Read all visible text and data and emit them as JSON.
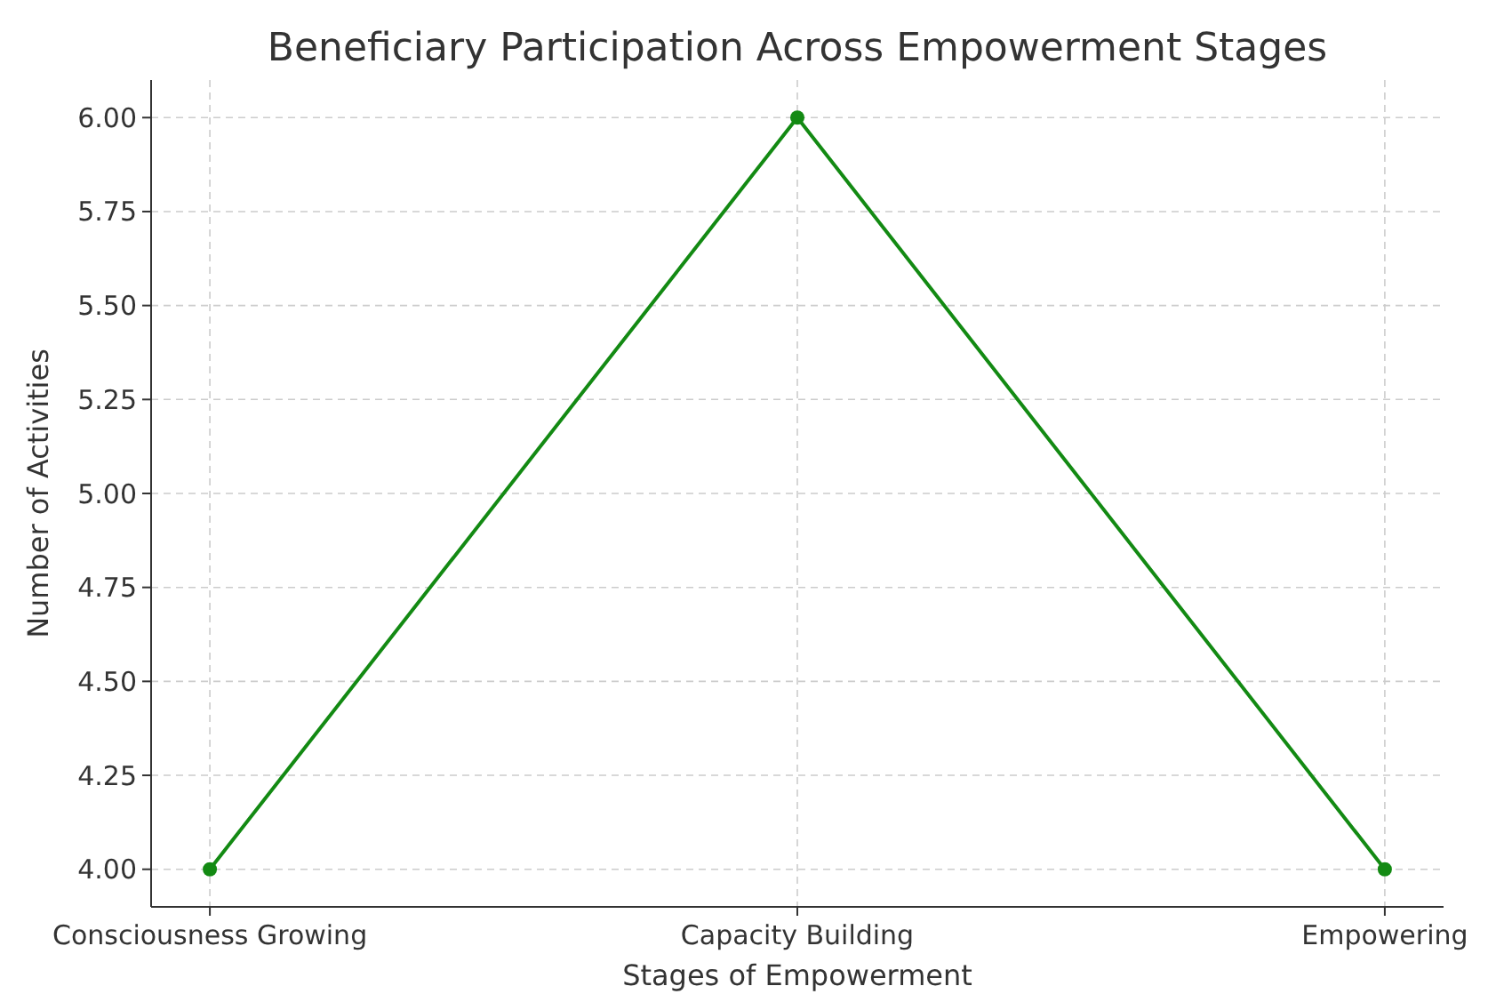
{
  "chart_data": {
    "type": "line",
    "title": "Beneficiary Participation Across Empowerment Stages",
    "xlabel": "Stages of Empowerment",
    "ylabel": "Number of Activities",
    "categories": [
      "Consciousness Growing",
      "Capacity Building",
      "Empowering"
    ],
    "series": [
      {
        "color": "#138a13",
        "values": [
          4,
          6,
          4
        ]
      }
    ],
    "ylim": [
      3.9,
      6.1
    ],
    "yticks": [
      {
        "value": 4,
        "label": "4.00"
      },
      {
        "value": 4.25,
        "label": "4.25"
      },
      {
        "value": 4.5,
        "label": "4.50"
      },
      {
        "value": 4.75,
        "label": "4.75"
      },
      {
        "value": 5,
        "label": "5.00"
      },
      {
        "value": 5.25,
        "label": "5.25"
      },
      {
        "value": 5.5,
        "label": "5.50"
      },
      {
        "value": 5.75,
        "label": "5.75"
      },
      {
        "value": 6,
        "label": "6.00"
      }
    ],
    "grid": true,
    "marker": "circle",
    "line_style": "solid"
  }
}
